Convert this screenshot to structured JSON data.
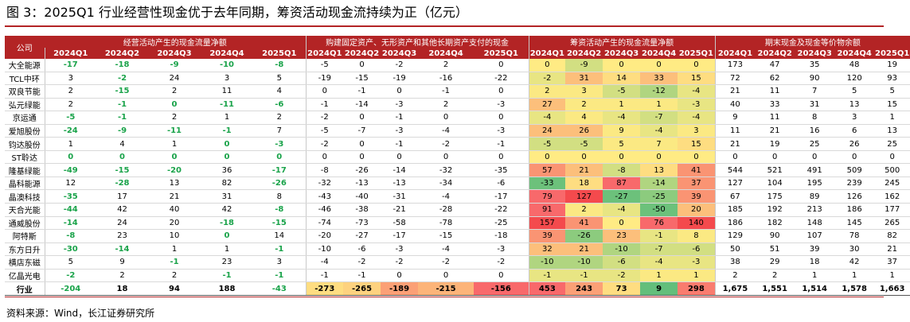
{
  "title": "图 3：2025Q1 行业经营性现金优于去年同期，筹资活动现金流持续为正（亿元）",
  "source": "资料来源：Wind，长江证券研究所",
  "colors": {
    "header_bg": "#b32425",
    "positive_green": "#1aa34a"
  },
  "table": {
    "company_header": "公司",
    "groups": [
      "经营活动产生的现金流量净额",
      "购建固定资产、无形资产和其他长期资产支付的现金",
      "筹资活动产生的现金流量净额",
      "期末现金及现金等价物余额"
    ],
    "quarters": [
      "2024Q1",
      "2024Q2",
      "2024Q3",
      "2024Q4",
      "2025Q1"
    ],
    "rows": [
      {
        "company": "大全能源",
        "op": [
          "-17",
          "-18",
          "-9",
          "-10",
          "-8"
        ],
        "capex": [
          "-5",
          "0",
          "-2",
          "2",
          "0"
        ],
        "fin": [
          "0",
          "-9",
          "0",
          "0",
          "0"
        ],
        "cash": [
          "173",
          "47",
          "35",
          "48",
          "19"
        ]
      },
      {
        "company": "TCL中环",
        "op": [
          "3",
          "-2",
          "24",
          "3",
          "5"
        ],
        "capex": [
          "-19",
          "-15",
          "-19",
          "-16",
          "-22"
        ],
        "fin": [
          "-2",
          "31",
          "14",
          "33",
          "15"
        ],
        "cash": [
          "72",
          "62",
          "90",
          "120",
          "93"
        ]
      },
      {
        "company": "双良节能",
        "op": [
          "2",
          "-15",
          "2",
          "11",
          "4"
        ],
        "capex": [
          "0",
          "-1",
          "0",
          "-1",
          "0"
        ],
        "fin": [
          "2",
          "3",
          "-5",
          "-12",
          "-4"
        ],
        "cash": [
          "21",
          "11",
          "7",
          "5",
          "5"
        ]
      },
      {
        "company": "弘元绿能",
        "op": [
          "2",
          "-1",
          "0",
          "-11",
          "-6"
        ],
        "capex": [
          "-1",
          "-14",
          "-3",
          "2",
          "-3"
        ],
        "fin": [
          "27",
          "2",
          "1",
          "1",
          "-3"
        ],
        "cash": [
          "40",
          "33",
          "31",
          "13",
          "15"
        ]
      },
      {
        "company": "京运通",
        "op": [
          "-5",
          "-1",
          "2",
          "1",
          "2"
        ],
        "capex": [
          "-2",
          "0",
          "-1",
          "0",
          "0"
        ],
        "fin": [
          "-4",
          "4",
          "-4",
          "-7",
          "-4"
        ],
        "cash": [
          "9",
          "11",
          "8",
          "3",
          "1"
        ]
      },
      {
        "company": "爱旭股份",
        "op": [
          "-24",
          "-9",
          "-11",
          "-1",
          "7"
        ],
        "capex": [
          "-5",
          "-7",
          "-3",
          "-4",
          "-3"
        ],
        "fin": [
          "24",
          "26",
          "9",
          "-4",
          "3"
        ],
        "cash": [
          "11",
          "21",
          "16",
          "6",
          "13"
        ]
      },
      {
        "company": "钧达股份",
        "op": [
          "1",
          "4",
          "1",
          "0",
          "-3"
        ],
        "capex": [
          "-2",
          "0",
          "-1",
          "-2",
          "-1"
        ],
        "fin": [
          "-5",
          "-5",
          "5",
          "7",
          "15"
        ],
        "cash": [
          "21",
          "19",
          "25",
          "26",
          "25"
        ]
      },
      {
        "company": "ST聆达",
        "op": [
          "0",
          "0",
          "0",
          "0",
          "0"
        ],
        "capex": [
          "0",
          "0",
          "0",
          "0",
          "0"
        ],
        "fin": [
          "0",
          "0",
          "0",
          "0",
          "0"
        ],
        "cash": [
          "0",
          "0",
          "0",
          "0",
          "0"
        ]
      },
      {
        "company": "隆基绿能",
        "op": [
          "-49",
          "-15",
          "-20",
          "36",
          "-17"
        ],
        "capex": [
          "-8",
          "-26",
          "-14",
          "-32",
          "-35"
        ],
        "fin": [
          "57",
          "21",
          "-8",
          "13",
          "41"
        ],
        "cash": [
          "544",
          "521",
          "491",
          "509",
          "500"
        ]
      },
      {
        "company": "晶科能源",
        "op": [
          "12",
          "-28",
          "13",
          "82",
          "-26"
        ],
        "capex": [
          "-32",
          "-13",
          "-13",
          "-34",
          "-6"
        ],
        "fin": [
          "-33",
          "18",
          "87",
          "-14",
          "37"
        ],
        "cash": [
          "127",
          "104",
          "195",
          "239",
          "245"
        ]
      },
      {
        "company": "晶澳科技",
        "op": [
          "-35",
          "17",
          "21",
          "31",
          "8"
        ],
        "capex": [
          "-43",
          "-40",
          "-31",
          "-4",
          "-17"
        ],
        "fin": [
          "79",
          "127",
          "-27",
          "-25",
          "39"
        ],
        "cash": [
          "67",
          "175",
          "89",
          "126",
          "162"
        ]
      },
      {
        "company": "天合光能",
        "op": [
          "-44",
          "42",
          "40",
          "42",
          "-8"
        ],
        "capex": [
          "-46",
          "-38",
          "-21",
          "-28",
          "-22"
        ],
        "fin": [
          "91",
          "2",
          "-4",
          "-50",
          "20"
        ],
        "cash": [
          "185",
          "192",
          "213",
          "186",
          "177"
        ]
      },
      {
        "company": "通威股份",
        "op": [
          "-14",
          "24",
          "20",
          "-18",
          "-15"
        ],
        "capex": [
          "-74",
          "-73",
          "-58",
          "-78",
          "-25"
        ],
        "fin": [
          "157",
          "41",
          "0",
          "76",
          "140"
        ],
        "cash": [
          "186",
          "182",
          "148",
          "145",
          "265"
        ]
      },
      {
        "company": "阿特斯",
        "op": [
          "-8",
          "23",
          "10",
          "0",
          "14"
        ],
        "capex": [
          "-20",
          "-27",
          "-17",
          "-15",
          "-18"
        ],
        "fin": [
          "39",
          "-26",
          "23",
          "-1",
          "8"
        ],
        "cash": [
          "129",
          "90",
          "107",
          "78",
          "82"
        ]
      },
      {
        "company": "东方日升",
        "op": [
          "-30",
          "-14",
          "1",
          "1",
          "-1"
        ],
        "capex": [
          "-10",
          "-6",
          "-3",
          "-4",
          "-3"
        ],
        "fin": [
          "32",
          "21",
          "-10",
          "-7",
          "-6"
        ],
        "cash": [
          "50",
          "51",
          "39",
          "30",
          "21"
        ]
      },
      {
        "company": "横店东磁",
        "op": [
          "5",
          "9",
          "-1",
          "23",
          "3"
        ],
        "capex": [
          "-4",
          "-2",
          "-2",
          "-2",
          "-2"
        ],
        "fin": [
          "-10",
          "-10",
          "-6",
          "-4",
          "-3"
        ],
        "cash": [
          "38",
          "29",
          "18",
          "42",
          "37"
        ]
      },
      {
        "company": "亿晶光电",
        "op": [
          "-2",
          "2",
          "2",
          "-1",
          "-1"
        ],
        "capex": [
          "-1",
          "-1",
          "0",
          "0",
          "0"
        ],
        "fin": [
          "-1",
          "-1",
          "-2",
          "1",
          "1"
        ],
        "cash": [
          "2",
          "2",
          "1",
          "1",
          "1"
        ]
      }
    ],
    "total": {
      "company": "行业",
      "op": [
        "-204",
        "18",
        "94",
        "188",
        "-43"
      ],
      "capex": [
        "-273",
        "-265",
        "-189",
        "-215",
        "-156"
      ],
      "fin": [
        "453",
        "243",
        "73",
        "9",
        "298"
      ],
      "cash": [
        "1,675",
        "1,551",
        "1,514",
        "1,578",
        "1,663"
      ]
    }
  }
}
